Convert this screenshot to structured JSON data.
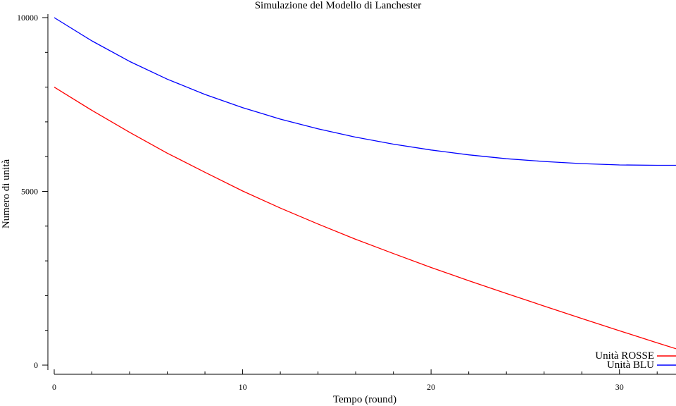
{
  "chart_data": {
    "type": "line",
    "title": "Simulazione del Modello di Lanchester",
    "xlabel": "Tempo (round)",
    "ylabel": "Numero di unità",
    "xlim": [
      0,
      33
    ],
    "ylim": [
      0,
      10000
    ],
    "x_ticks": [
      0,
      10,
      20,
      30
    ],
    "x_minor_step": 2,
    "y_ticks": [
      0,
      5000,
      10000
    ],
    "y_minor_step": 1000,
    "grid": false,
    "legend_position": "bottom-right",
    "series": [
      {
        "name": "Unità ROSSE",
        "color": "#ff0000",
        "x": [
          0,
          2,
          4,
          6,
          8,
          10,
          12,
          14,
          16,
          18,
          20,
          22,
          24,
          26,
          28,
          30,
          32,
          33
        ],
        "y": [
          8000,
          7330,
          6700,
          6100,
          5550,
          5010,
          4520,
          4060,
          3620,
          3210,
          2810,
          2430,
          2060,
          1700,
          1340,
          990,
          640,
          470
        ]
      },
      {
        "name": "Unità BLU",
        "color": "#0000ff",
        "x": [
          0,
          2,
          4,
          6,
          8,
          10,
          12,
          14,
          16,
          18,
          20,
          22,
          24,
          26,
          28,
          30,
          32,
          33
        ],
        "y": [
          10000,
          9330,
          8740,
          8230,
          7790,
          7410,
          7080,
          6800,
          6560,
          6360,
          6190,
          6050,
          5940,
          5860,
          5800,
          5760,
          5750,
          5750
        ]
      }
    ]
  }
}
